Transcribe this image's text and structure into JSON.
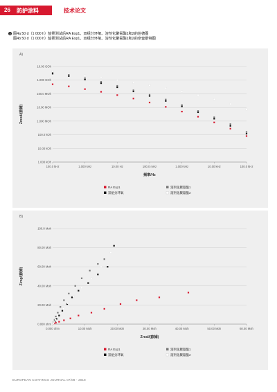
{
  "header": {
    "page_number": "26",
    "section": "防护涂料",
    "kicker": "技术论文"
  },
  "caption": {
    "bullet": "❸",
    "line1": "图4a 50 d（1 000 h）盐雾测试后RA Exp1、双组分环氧、溶剂化聚氨酯1和2的伯德图",
    "line2": "图4b 50 d（1 000 h）盐雾测试后RA Exp1、双组分环氧、溶剂化聚氨酯1和2的奈奎斯特图"
  },
  "panel_a": {
    "label": "A)"
  },
  "panel_b": {
    "label": "B)"
  },
  "colors": {
    "accent": "#d7192f",
    "panel_bg": "#efefef"
  },
  "footer": "EUROPEAN COATINGS JOURNAL 07/08 - 2018",
  "chart_data": [
    {
      "type": "scatter",
      "title": "",
      "xlabel": "频率/Hz",
      "ylabel": "Zmod/(欧姆)",
      "xscale": "log",
      "yscale": "log",
      "xlim": [
        100000,
        0.1
      ],
      "ylim": [
        1000,
        10000000000
      ],
      "x_ticks": [
        "100.0 kHz",
        "1.000 kHz",
        "10.00 Hz",
        "100.0 mHz",
        "1.000 kHz",
        "10.00 kHz",
        "100.0 kHz"
      ],
      "y_ticks": [
        "1.000 kOh",
        "10.00 kOh",
        "100.0 kOh",
        "1.000 MOh",
        "10.00 MOh",
        "100.0 MOh",
        "1.000 GOh",
        "10.00 GOh"
      ],
      "grid": true,
      "legend_placement": "bottom",
      "series": [
        {
          "name": "RA Exp1",
          "color": "#d7192f",
          "marker": "square",
          "x": [
            100000,
            31623,
            10000,
            3162,
            1000,
            316,
            100,
            31.6,
            10,
            3.16,
            1,
            0.316,
            0.1
          ],
          "y": [
            500000000,
            350000000,
            220000000,
            140000000,
            80000000,
            45000000,
            23000000,
            11000000,
            5000000,
            2100000,
            800000,
            280000,
            80000
          ]
        },
        {
          "name": "双组分环氧",
          "color": "#111111",
          "marker": "square",
          "x": [
            100000,
            31623,
            10000,
            3162,
            1000,
            316,
            100,
            31.6,
            10,
            3.16,
            1,
            0.316,
            0.1
          ],
          "y": [
            3000000000,
            2000000000,
            1100000000,
            600000000,
            300000000,
            150000000,
            70000000,
            30000000,
            12000000,
            4500000,
            1500000,
            450000,
            120000
          ]
        },
        {
          "name": "溶剂化聚氨酯1",
          "color": "#777777",
          "marker": "square",
          "x": [
            100000,
            31623,
            10000,
            3162,
            1000,
            316,
            100,
            31.6,
            10,
            3.16,
            1,
            0.316,
            0.1
          ],
          "y": [
            4000000000,
            2500000000,
            1400000000,
            750000000,
            380000000,
            180000000,
            85000000,
            38000000,
            15000000,
            5500000,
            1900000,
            600000,
            160000
          ]
        },
        {
          "name": "溶剂化聚氨酯2",
          "color": "#ffffff",
          "marker": "square",
          "x": [
            100000,
            31623,
            10000,
            3162,
            1000,
            316,
            100,
            31.6,
            10,
            3.16,
            1,
            0.316,
            0.1
          ],
          "y": [
            4500000000,
            3200000000,
            2200000000,
            1500000000,
            1000000000,
            650000000,
            420000000,
            260000000,
            150000000,
            80000000,
            40000000,
            18000000,
            7000000
          ]
        }
      ]
    },
    {
      "type": "scatter",
      "title": "",
      "xlabel": "Zreal/(欧姆)",
      "ylabel": "Zimg/(欧姆)",
      "xlim": [
        0,
        60000000
      ],
      "ylim": [
        0,
        100000000
      ],
      "x_ticks": [
        "0.000 ohm",
        "10.00 Moh",
        "20.00 Moh",
        "30.00 Moh",
        "40.00 Moh",
        "50.00 Moh",
        "60.00 Moh"
      ],
      "y_ticks": [
        "0.000 ohm",
        "20.00 Moh",
        "40.00 Moh",
        "60.00 Moh",
        "80.00 Moh",
        "100.0 Moh"
      ],
      "grid": true,
      "legend_placement": "bottom",
      "series": [
        {
          "name": "RA Exp1",
          "color": "#d7192f",
          "marker": "square",
          "x": [
            200000,
            500000,
            1000000,
            2000000,
            3500000,
            5500000,
            8000000,
            12000000,
            16000000,
            21000000,
            26000000,
            33000000,
            42000000
          ],
          "y": [
            300000,
            800000,
            1500000,
            2500000,
            4000000,
            6000000,
            9000000,
            12000000,
            16000000,
            21000000,
            25000000,
            28000000,
            33000000
          ]
        },
        {
          "name": "双组分环氧",
          "color": "#111111",
          "marker": "square",
          "x": [
            100000,
            300000,
            700000,
            1200000,
            2000000,
            3000000,
            4500000,
            6000000,
            8000000,
            11000000,
            14000000,
            17000000,
            19000000
          ],
          "y": [
            500000,
            1500000,
            3000000,
            5500000,
            9000000,
            14000000,
            21000000,
            28000000,
            35000000,
            43000000,
            52000000,
            60000000,
            82000000
          ]
        },
        {
          "name": "溶剂化聚氨酯1",
          "color": "#777777",
          "marker": "square",
          "x": [
            100000,
            300000,
            600000,
            1000000,
            1600000,
            2400000,
            3500000,
            5000000,
            7000000,
            9000000,
            11500000,
            14000000,
            16000000
          ],
          "y": [
            600000,
            2000000,
            4500000,
            8000000,
            12000000,
            18000000,
            25000000,
            32000000,
            40000000,
            48000000,
            56000000,
            63000000,
            68000000
          ]
        },
        {
          "name": "溶剂化聚氨酯2",
          "color": "#ffffff",
          "marker": "square",
          "x": [
            100000,
            250000,
            500000,
            900000,
            1500000,
            2300000,
            3300000,
            4700000,
            6500000,
            9000000,
            12000000,
            15000000,
            18000000
          ],
          "y": [
            300000,
            1000000,
            2500000,
            4500000,
            7500000,
            11000000,
            16000000,
            22000000,
            29000000,
            38000000,
            48000000,
            60000000,
            75000000
          ]
        }
      ]
    }
  ]
}
